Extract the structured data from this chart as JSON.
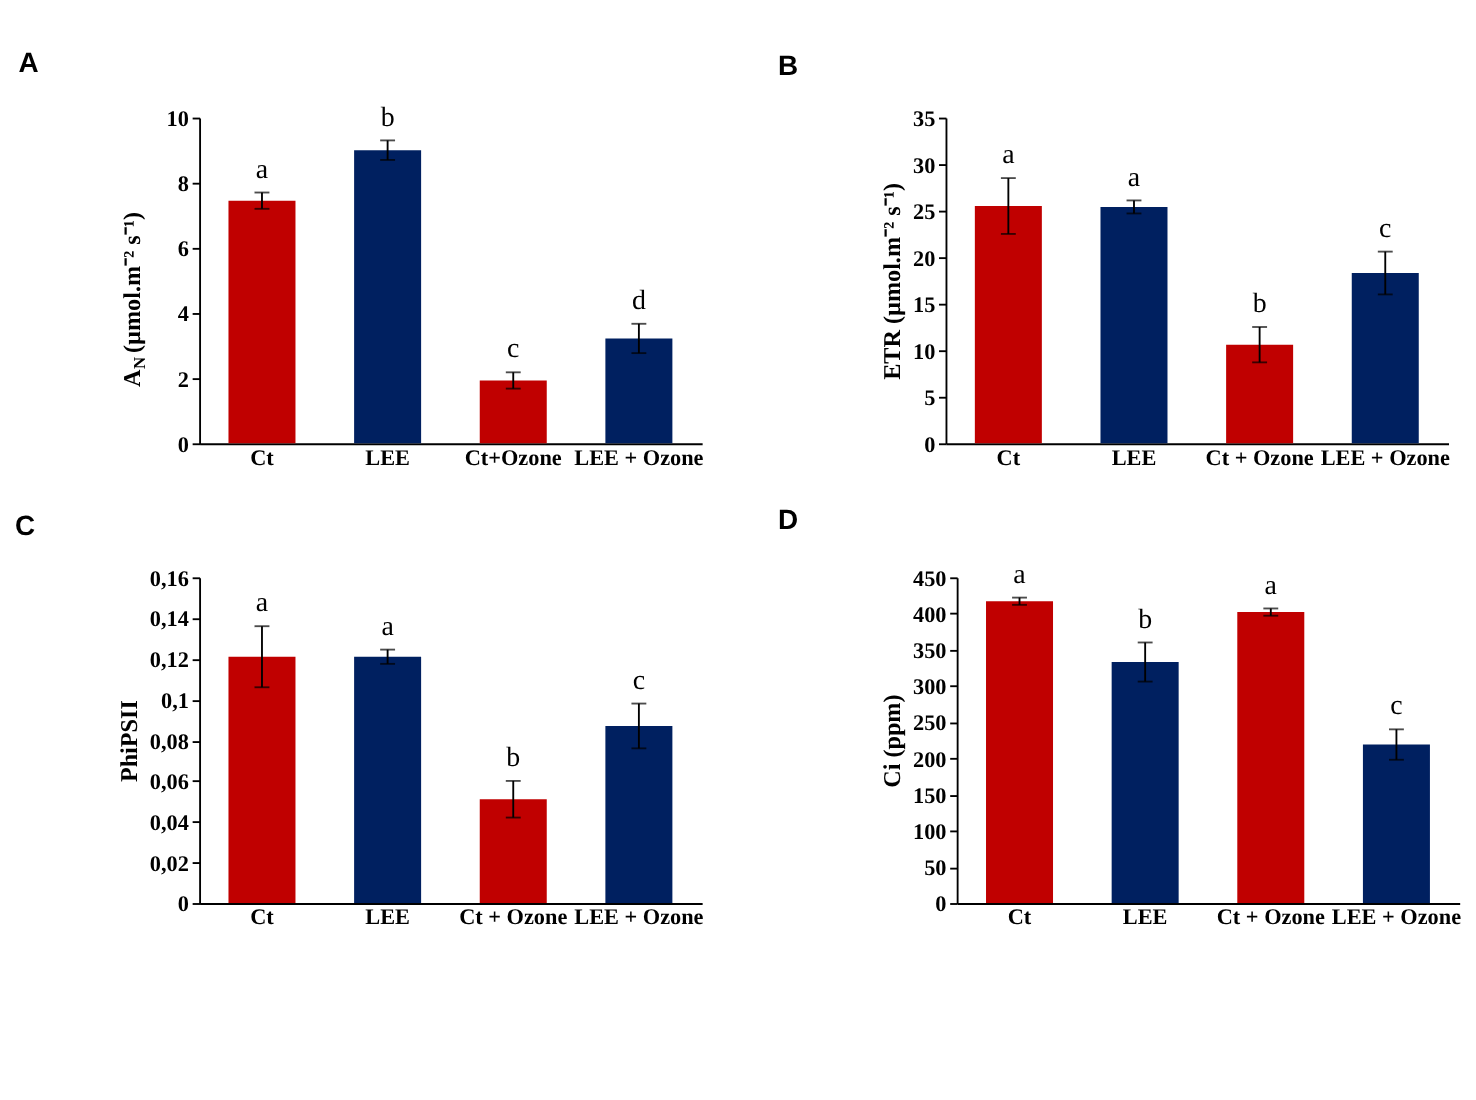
{
  "chart_data": [
    {
      "type": "bar",
      "title": "A",
      "ylabel": "A$_{N}$ (µmol.m⁻² s⁻¹)",
      "categories": [
        "Ct",
        "LEE",
        "Ct+Ozone",
        "LEE + Ozone"
      ],
      "values": [
        7.45,
        9.0,
        1.93,
        3.22
      ],
      "errors": [
        0.25,
        0.3,
        0.25,
        0.45
      ],
      "colors": [
        "#c00000",
        "#002060",
        "#c00000",
        "#002060"
      ],
      "ylim": [
        0,
        10
      ],
      "yticks": [
        0,
        2,
        4,
        6,
        8,
        10
      ],
      "grid": false,
      "annotations": [
        {
          "text": "a",
          "x": "Ct",
          "y": 7.7
        },
        {
          "text": "b",
          "x": "LEE",
          "y": 9.3
        },
        {
          "text": "c",
          "x": "Ct+Ozone",
          "y": 2.18
        },
        {
          "text": "d",
          "x": "LEE + Ozone",
          "y": 3.67
        }
      ]
    },
    {
      "type": "bar",
      "title": "B",
      "ylabel": "ETR (µmol.m⁻² s⁻¹)",
      "categories": [
        "Ct",
        "LEE",
        "Ct + Ozone",
        "LEE + Ozone"
      ],
      "values": [
        25.5,
        25.4,
        10.6,
        18.3
      ],
      "errors": [
        3.0,
        0.7,
        1.9,
        2.3
      ],
      "colors": [
        "#c00000",
        "#002060",
        "#c00000",
        "#002060"
      ],
      "ylim": [
        0,
        35
      ],
      "yticks": [
        0,
        5,
        10,
        15,
        20,
        25,
        30,
        35
      ],
      "grid": false,
      "annotations": [
        {
          "text": "a",
          "x": "Ct",
          "y": 28.5
        },
        {
          "text": "a",
          "x": "LEE",
          "y": 26.1
        },
        {
          "text": "b",
          "x": "Ct + Ozone",
          "y": 12.5
        },
        {
          "text": "c",
          "x": "LEE + Ozone",
          "y": 20.6
        }
      ]
    },
    {
      "type": "bar",
      "title": "C",
      "ylabel": "PhiPSII",
      "categories": [
        "Ct",
        "LEE",
        "Ct + Ozone",
        "LEE + Ozone"
      ],
      "values": [
        0.121,
        0.121,
        0.051,
        0.087
      ],
      "errors": [
        0.015,
        0.0035,
        0.009,
        0.011
      ],
      "colors": [
        "#c00000",
        "#002060",
        "#c00000",
        "#002060"
      ],
      "ylim": [
        0,
        0.16
      ],
      "yticks": [
        0,
        {
          "value": 0.02,
          "label": "0,02"
        },
        {
          "value": 0.04,
          "label": "0,04"
        },
        {
          "value": 0.06,
          "label": "0,06"
        },
        {
          "value": 0.08,
          "label": "0,08"
        },
        {
          "value": 0.1,
          "label": "0,1"
        },
        {
          "value": 0.12,
          "label": "0,12"
        },
        {
          "value": 0.14,
          "label": "0,14"
        },
        {
          "value": 0.16,
          "label": "0,16"
        }
      ],
      "grid": false,
      "annotations": [
        {
          "text": "a",
          "x": "Ct",
          "y": 0.136
        },
        {
          "text": "a",
          "x": "LEE",
          "y": 0.1245
        },
        {
          "text": "b",
          "x": "Ct + Ozone",
          "y": 0.06
        },
        {
          "text": "c",
          "x": "LEE + Ozone",
          "y": 0.098
        }
      ]
    },
    {
      "type": "bar",
      "title": "D",
      "ylabel": "Ci (ppm)",
      "categories": [
        "Ct",
        "LEE",
        "Ct + Ozone",
        "LEE + Ozone"
      ],
      "values": [
        417,
        333,
        402,
        219
      ],
      "errors": [
        5,
        27,
        5,
        21
      ],
      "colors": [
        "#c00000",
        "#002060",
        "#c00000",
        "#002060"
      ],
      "ylim": [
        0,
        450
      ],
      "yticks": [
        0,
        50,
        100,
        150,
        200,
        250,
        300,
        350,
        400,
        450
      ],
      "grid": false,
      "annotations": [
        {
          "text": "a",
          "x": "Ct",
          "y": 422
        },
        {
          "text": "b",
          "x": "LEE",
          "y": 360
        },
        {
          "text": "a",
          "x": "Ct + Ozone",
          "y": 407
        },
        {
          "text": "c",
          "x": "LEE + Ozone",
          "y": 240
        }
      ]
    }
  ]
}
